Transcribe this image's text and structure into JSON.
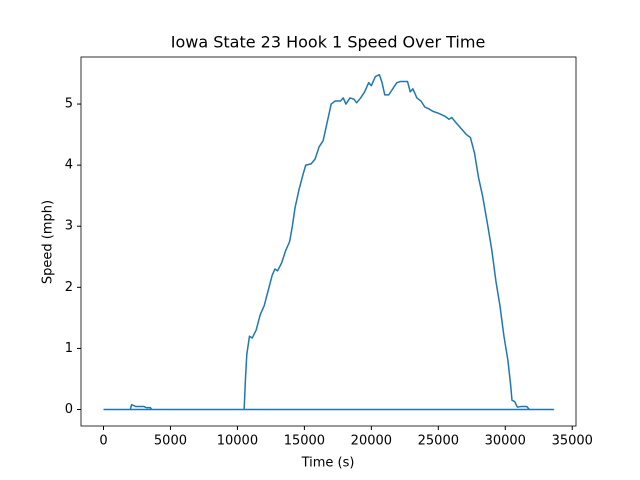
{
  "chart_data": {
    "type": "line",
    "title": "Iowa State 23 Hook 1 Speed Over Time",
    "xlabel": "Time (s)",
    "ylabel": "Speed (mph)",
    "x": [
      0,
      2000,
      2100,
      2400,
      3000,
      3200,
      3500,
      3600,
      10500,
      10600,
      10700,
      10900,
      11100,
      11400,
      11700,
      12000,
      12300,
      12600,
      12800,
      13000,
      13300,
      13600,
      13900,
      14100,
      14300,
      14600,
      14900,
      15100,
      15500,
      15800,
      16100,
      16400,
      16700,
      17000,
      17300,
      17700,
      17900,
      18100,
      18400,
      18700,
      18900,
      19200,
      19500,
      19800,
      20000,
      20300,
      20600,
      20800,
      21000,
      21300,
      21600,
      21900,
      22200,
      22700,
      22900,
      23100,
      23400,
      23700,
      24000,
      24300,
      24600,
      25000,
      25500,
      25800,
      26000,
      26300,
      26700,
      27100,
      27400,
      27700,
      28000,
      28300,
      28700,
      29000,
      29300,
      29600,
      29900,
      30200,
      30400,
      30500,
      30700,
      30900,
      31200,
      31600,
      31800,
      33600,
      0
    ],
    "values": [
      0,
      0,
      0.08,
      0.05,
      0.05,
      0.03,
      0.03,
      0,
      0,
      0.5,
      0.9,
      1.2,
      1.17,
      1.3,
      1.55,
      1.7,
      1.95,
      2.2,
      2.3,
      2.27,
      2.4,
      2.6,
      2.75,
      3.0,
      3.3,
      3.6,
      3.85,
      4.0,
      4.02,
      4.1,
      4.3,
      4.4,
      4.7,
      5.0,
      5.05,
      5.05,
      5.1,
      5.0,
      5.1,
      5.08,
      5.02,
      5.1,
      5.2,
      5.35,
      5.3,
      5.45,
      5.48,
      5.35,
      5.15,
      5.15,
      5.25,
      5.35,
      5.37,
      5.37,
      5.2,
      5.25,
      5.1,
      5.05,
      4.95,
      4.92,
      4.88,
      4.85,
      4.8,
      4.75,
      4.78,
      4.7,
      4.6,
      4.5,
      4.45,
      4.2,
      3.8,
      3.5,
      3.0,
      2.6,
      2.1,
      1.7,
      1.2,
      0.8,
      0.4,
      0.15,
      0.13,
      0.04,
      0.05,
      0.05,
      0,
      0,
      0
    ],
    "color": "#1f77b4",
    "xlim": [
      -1680,
      35280
    ],
    "ylim": [
      -0.27,
      5.77
    ],
    "xticks": [
      0,
      5000,
      10000,
      15000,
      20000,
      25000,
      30000,
      35000
    ],
    "yticks": [
      0,
      1,
      2,
      3,
      4,
      5
    ]
  }
}
